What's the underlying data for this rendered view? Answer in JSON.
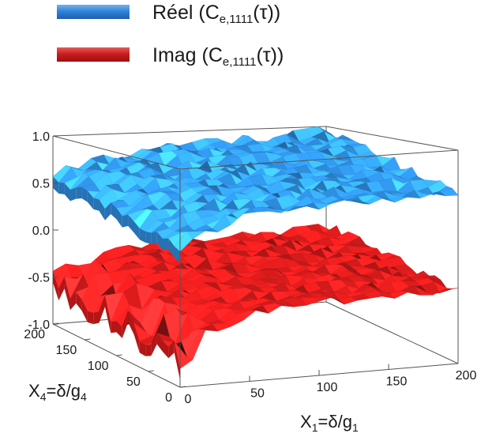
{
  "chart_data": {
    "type": "surface-3d",
    "legend": {
      "placement": "top-left",
      "entries": [
        {
          "name": "Réel",
          "sub": "e,1111",
          "color": "#3a86d8"
        },
        {
          "name": "Imag",
          "sub": "e,1111",
          "color": "#d0222a"
        }
      ]
    },
    "x_axis": {
      "label": "X",
      "label_sub": "1",
      "label_rest": "=δ/g",
      "label_rest_sub": "1",
      "range": [
        0,
        200
      ],
      "ticks": [
        "0",
        "50",
        "100",
        "150",
        "200"
      ]
    },
    "y_axis": {
      "label": "X",
      "label_sub": "4",
      "label_rest": "=δ/g",
      "label_rest_sub": "4",
      "range": [
        0,
        200
      ],
      "ticks": [
        "0",
        "50",
        "100",
        "150",
        "200"
      ]
    },
    "z_axis": {
      "range": [
        -1.0,
        1.0
      ],
      "ticks": [
        "1.0",
        "0.5",
        "0.0",
        "-0.5",
        "-1.0"
      ]
    },
    "series": [
      {
        "name": "Réel",
        "color": "#2f8fe0",
        "base": 0.8,
        "dip": 0.45,
        "noise": 0.06
      },
      {
        "name": "Imag",
        "color": "#e01c1c",
        "base": -0.22,
        "dip": -0.75,
        "noise": 0.05
      }
    ],
    "grid": false
  }
}
